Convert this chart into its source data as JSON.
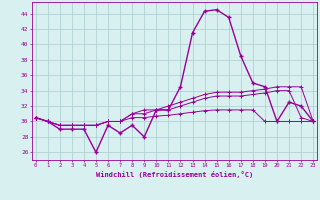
{
  "xlabel": "Windchill (Refroidissement éolien,°C)",
  "x": [
    0,
    1,
    2,
    3,
    4,
    5,
    6,
    7,
    8,
    9,
    10,
    11,
    12,
    13,
    14,
    15,
    16,
    17,
    18,
    19,
    20,
    21,
    22,
    23
  ],
  "line1": [
    30.5,
    30.0,
    29.0,
    29.0,
    29.0,
    26.0,
    29.5,
    28.5,
    29.5,
    28.0,
    31.5,
    31.5,
    34.5,
    41.5,
    44.3,
    44.5,
    43.5,
    38.5,
    35.0,
    34.5,
    30.0,
    32.5,
    32.0,
    30.0
  ],
  "line2": [
    30.5,
    30.0,
    29.5,
    29.5,
    29.5,
    29.5,
    30.0,
    30.0,
    31.0,
    31.5,
    31.5,
    32.0,
    32.5,
    33.0,
    33.5,
    33.8,
    33.8,
    33.8,
    34.0,
    34.2,
    34.5,
    34.5,
    34.5,
    30.0
  ],
  "line3": [
    30.5,
    30.0,
    29.5,
    29.5,
    29.5,
    29.5,
    30.0,
    30.0,
    31.0,
    31.0,
    31.5,
    31.5,
    32.0,
    32.5,
    33.0,
    33.3,
    33.3,
    33.3,
    33.5,
    33.7,
    34.0,
    34.0,
    30.5,
    30.0
  ],
  "line4": [
    30.5,
    30.0,
    29.5,
    29.5,
    29.5,
    29.5,
    30.0,
    30.0,
    30.5,
    30.5,
    30.7,
    30.8,
    31.0,
    31.2,
    31.4,
    31.5,
    31.5,
    31.5,
    31.5,
    30.0,
    30.0,
    30.0,
    30.0,
    30.0
  ],
  "line_color": "#990099",
  "bg_color": "#d8f0f0",
  "grid_color": "#aacccc",
  "yticks": [
    26,
    28,
    30,
    32,
    34,
    36,
    38,
    40,
    42,
    44
  ],
  "xticks": [
    0,
    1,
    2,
    3,
    4,
    5,
    6,
    7,
    8,
    9,
    10,
    11,
    12,
    13,
    14,
    15,
    16,
    17,
    18,
    19,
    20,
    21,
    22,
    23
  ]
}
